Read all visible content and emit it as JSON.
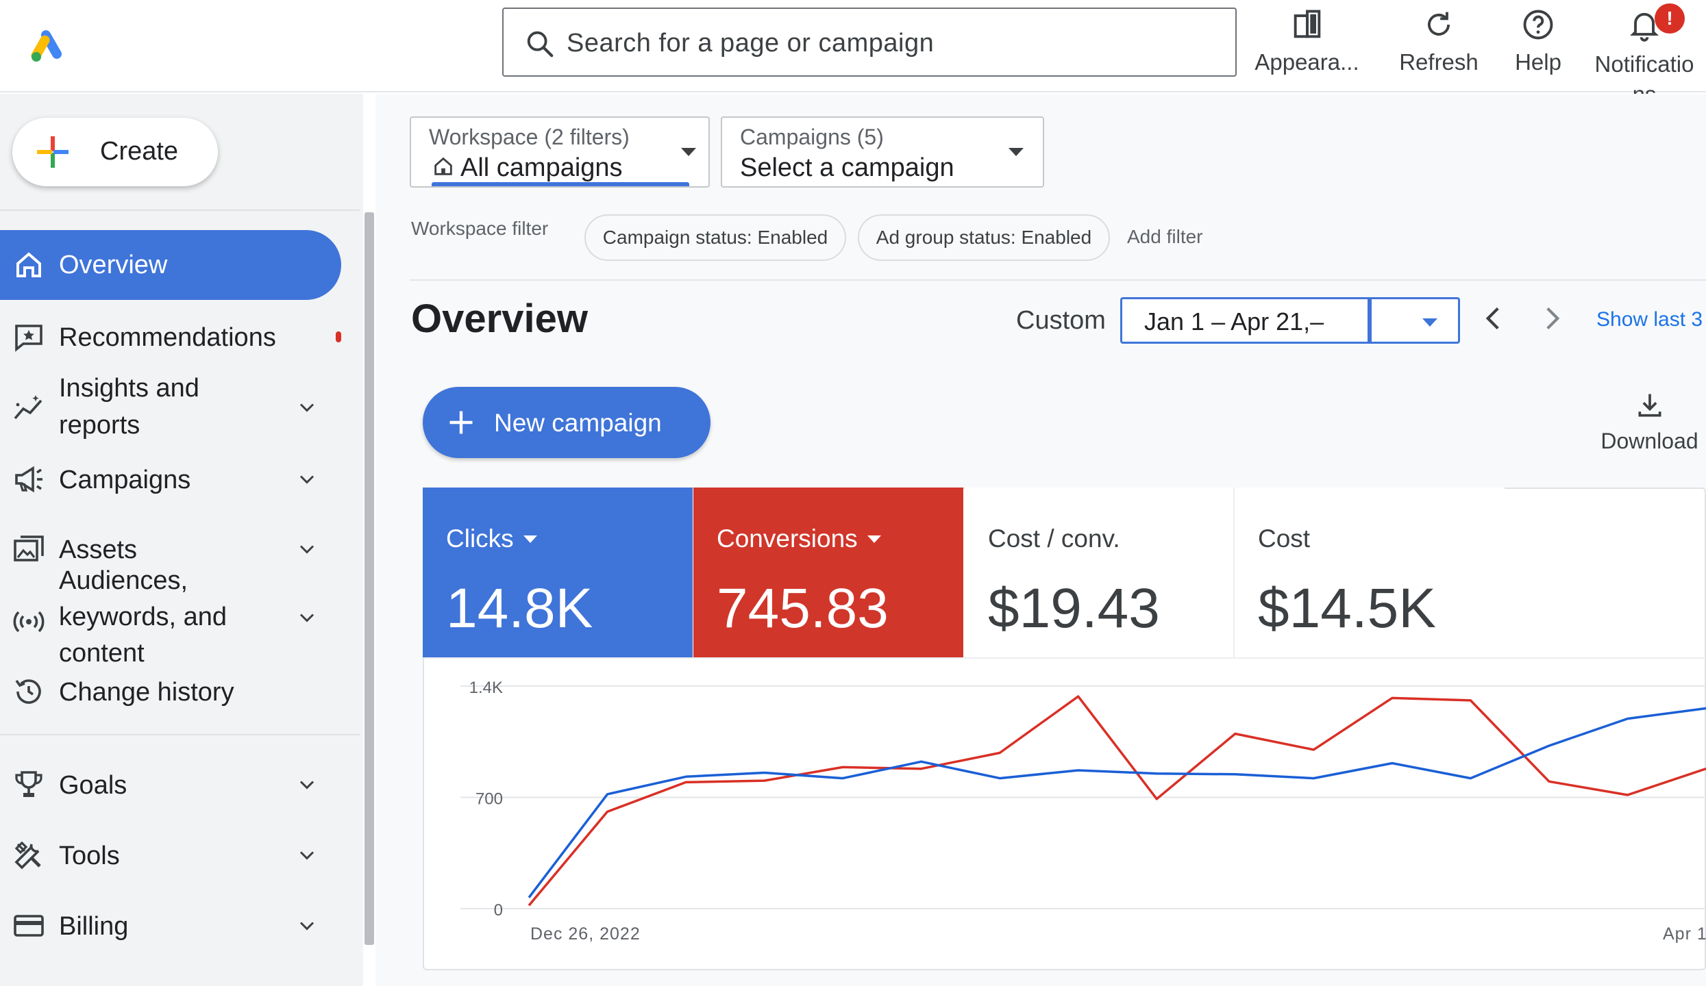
{
  "app": {
    "search_placeholder": "Search for a page or campaign"
  },
  "header": {
    "actions": [
      {
        "label": "Appeara...",
        "icon": "appearance-icon"
      },
      {
        "label": "Refresh",
        "icon": "refresh-icon"
      },
      {
        "label": "Help",
        "icon": "help-icon"
      },
      {
        "label": "Notifications",
        "icon": "bell-icon",
        "badge": "!"
      }
    ]
  },
  "sidebar": {
    "create_label": "Create",
    "items": [
      {
        "label": "Overview",
        "icon": "home-icon",
        "active": true
      },
      {
        "label": "Recommendations",
        "icon": "recommendations-icon"
      },
      {
        "label": "Insights and reports",
        "icon": "insights-icon",
        "expandable": true
      },
      {
        "label": "Campaigns",
        "icon": "megaphone-icon",
        "expandable": true
      },
      {
        "label": "Assets",
        "icon": "assets-icon",
        "expandable": true
      },
      {
        "label": "Audiences, keywords, and content",
        "icon": "audiences-icon",
        "expandable": true
      },
      {
        "label": "Change history",
        "icon": "history-icon"
      },
      {
        "label": "Goals",
        "icon": "trophy-icon",
        "expandable": true
      },
      {
        "label": "Tools",
        "icon": "tools-icon",
        "expandable": true
      },
      {
        "label": "Billing",
        "icon": "billing-icon",
        "expandable": true
      }
    ]
  },
  "filters": {
    "workspace": {
      "caption": "Workspace (2 filters)",
      "value": "All campaigns"
    },
    "campaigns": {
      "caption": "Campaigns (5)",
      "value": "Select a campaign"
    },
    "workspace_filter_label": "Workspace filter",
    "chips": [
      "Campaign status: Enabled",
      "Ad group status: Enabled"
    ],
    "add_filter": "Add filter"
  },
  "overview": {
    "title": "Overview",
    "date_mode": "Custom",
    "date_range": "Jan 1 – Apr 21,–",
    "show_last": "Show last 3",
    "new_campaign": "New campaign",
    "download": "Download"
  },
  "metrics": [
    {
      "label": "Clicks",
      "value": "14.8K",
      "color": "#3f74d9",
      "dropdown": true
    },
    {
      "label": "Conversions",
      "value": "745.83",
      "color": "#d1362a",
      "dropdown": true
    },
    {
      "label": "Cost / conv.",
      "value": "$19.43"
    },
    {
      "label": "Cost",
      "value": "$14.5K"
    }
  ],
  "chart_data": {
    "type": "line",
    "y_ticks": [
      "1.4K",
      "700",
      "0"
    ],
    "ylim": [
      0,
      1400
    ],
    "x_ticks": [
      "Dec 26, 2022",
      "Apr 1"
    ],
    "grid": true,
    "series": [
      {
        "name": "Clicks",
        "color": "#1a5fd6",
        "values": [
          70,
          720,
          830,
          855,
          820,
          925,
          820,
          870,
          850,
          845,
          820,
          915,
          820,
          1025,
          1195,
          1260
        ]
      },
      {
        "name": "Conversions",
        "color": "#d93025",
        "values": [
          20,
          610,
          795,
          805,
          890,
          880,
          980,
          1335,
          690,
          1100,
          1000,
          1325,
          1310,
          800,
          715,
          880
        ]
      }
    ]
  }
}
